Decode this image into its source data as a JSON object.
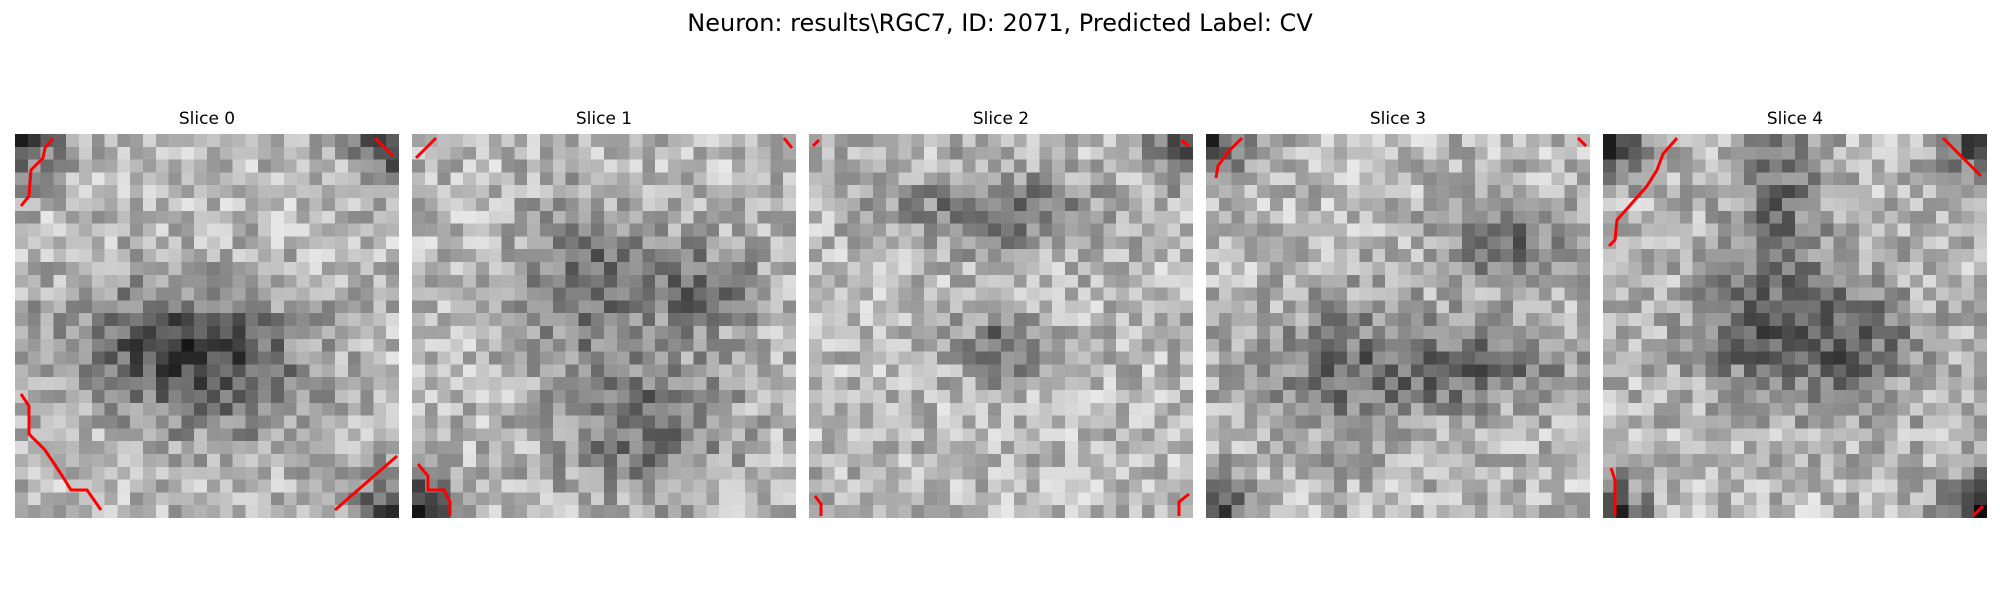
{
  "figure": {
    "title": "Neuron: results\\RGC7, ID: 2071, Predicted Label: CV"
  },
  "colors": {
    "contour": "#ff0000"
  },
  "panels": [
    {
      "title": "Slice 0",
      "seed": 11,
      "blobs": [
        [
          0.35,
          0.55,
          0.16,
          0.3
        ],
        [
          0.55,
          0.62,
          0.18,
          0.22
        ]
      ],
      "corner_dark": [
        1,
        1,
        0,
        1
      ]
    },
    {
      "title": "Slice 1",
      "seed": 23,
      "blobs": [
        [
          0.45,
          0.38,
          0.2,
          0.15
        ],
        [
          0.6,
          0.75,
          0.18,
          0.22
        ],
        [
          0.75,
          0.4,
          0.12,
          0.15
        ]
      ],
      "corner_dark": [
        0,
        0,
        1,
        0
      ]
    },
    {
      "title": "Slice 2",
      "seed": 37,
      "blobs": [
        [
          0.47,
          0.2,
          0.1,
          0.25
        ],
        [
          0.5,
          0.55,
          0.1,
          0.1
        ]
      ],
      "corner_dark": [
        0,
        1,
        0,
        0
      ]
    },
    {
      "title": "Slice 3",
      "seed": 41,
      "blobs": [
        [
          0.38,
          0.62,
          0.18,
          0.25
        ],
        [
          0.75,
          0.6,
          0.1,
          0.22
        ],
        [
          0.78,
          0.28,
          0.1,
          0.18
        ]
      ],
      "corner_dark": [
        1,
        0,
        1,
        0
      ]
    },
    {
      "title": "Slice 4",
      "seed": 59,
      "blobs": [
        [
          0.4,
          0.52,
          0.15,
          0.2
        ],
        [
          0.65,
          0.55,
          0.18,
          0.18
        ],
        [
          0.45,
          0.18,
          0.22,
          0.12
        ]
      ],
      "corner_dark": [
        1,
        1,
        1,
        1
      ]
    }
  ]
}
